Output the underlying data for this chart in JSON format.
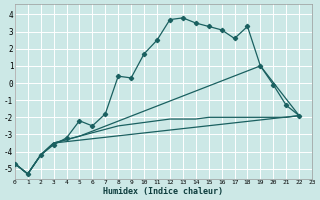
{
  "xlabel": "Humidex (Indice chaleur)",
  "bg_color": "#cce8e6",
  "grid_color": "#b8d8d5",
  "line_color": "#1a6060",
  "xlim": [
    0,
    23
  ],
  "ylim": [
    -5.6,
    4.6
  ],
  "xticks": [
    0,
    1,
    2,
    3,
    4,
    5,
    6,
    7,
    8,
    9,
    10,
    11,
    12,
    13,
    14,
    15,
    16,
    17,
    18,
    19,
    20,
    21,
    22,
    23
  ],
  "yticks": [
    -5,
    -4,
    -3,
    -2,
    -1,
    0,
    1,
    2,
    3,
    4
  ],
  "line_main_x": [
    0,
    1,
    2,
    3,
    4,
    5,
    6,
    7,
    8,
    9,
    10,
    11,
    12,
    13,
    14,
    15,
    16,
    17,
    18,
    19,
    20,
    21,
    22
  ],
  "line_main_y": [
    -4.7,
    -5.3,
    -4.2,
    -3.6,
    -3.2,
    -2.2,
    -2.5,
    -1.8,
    0.4,
    0.3,
    1.7,
    2.5,
    3.7,
    3.8,
    3.5,
    3.3,
    3.1,
    2.6,
    3.3,
    1.0,
    -0.1,
    -1.3,
    -1.9
  ],
  "line2_x": [
    0,
    1,
    2,
    3,
    22
  ],
  "line2_y": [
    -4.7,
    -5.3,
    -4.2,
    -3.5,
    -1.9
  ],
  "line3_x": [
    0,
    1,
    2,
    3,
    4,
    5,
    6,
    7,
    8,
    9,
    10,
    11,
    12,
    13,
    14,
    15,
    16,
    17,
    18,
    19,
    20,
    21,
    22
  ],
  "line3_y": [
    -4.7,
    -5.3,
    -4.2,
    -3.5,
    -3.3,
    -3.1,
    -2.9,
    -2.7,
    -2.5,
    -2.4,
    -2.3,
    -2.2,
    -2.1,
    -2.1,
    -2.1,
    -2.0,
    -2.0,
    -2.0,
    -2.0,
    -2.0,
    -2.0,
    -2.0,
    -1.9
  ],
  "line4_x": [
    0,
    1,
    2,
    3,
    4,
    5,
    19,
    22
  ],
  "line4_y": [
    -4.7,
    -5.3,
    -4.2,
    -3.5,
    -3.3,
    -3.1,
    1.0,
    -1.9
  ]
}
